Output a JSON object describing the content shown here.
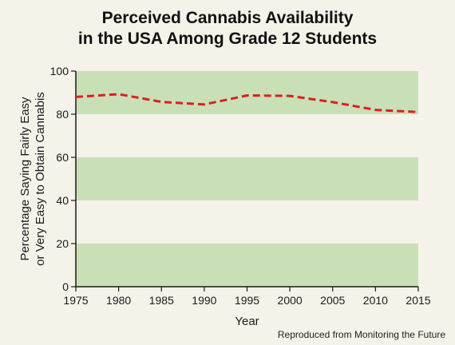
{
  "title_line1": "Perceived Cannabis Availability",
  "title_line2": "in the USA Among Grade 12 Students",
  "footer": "Reproduced from Monitoring the Future",
  "colors": {
    "background": "#f5f2e9",
    "band": "#c9e0b6",
    "line": "#dd1f1f",
    "axis": "#1a1a1a"
  },
  "chart_data": {
    "type": "line",
    "title": "Perceived Cannabis Availability in the USA Among Grade 12 Students",
    "xlabel": "Year",
    "ylabel_line1": "Percentage Saying Fairly Easy",
    "ylabel_line2": "or Very Easy to Obtain Cannabis",
    "xlim": [
      1975,
      2015
    ],
    "ylim": [
      0,
      100
    ],
    "xticks": [
      "1975",
      "1980",
      "1985",
      "1990",
      "1995",
      "2000",
      "2005",
      "2010",
      "2015"
    ],
    "yticks": [
      "0",
      "20",
      "40",
      "60",
      "80",
      "100"
    ],
    "grid": "alternating horizontal bands",
    "line_style": "dashed",
    "series": [
      {
        "x": [
          1975,
          1980,
          1985,
          1990,
          1995,
          2000,
          2005,
          2010,
          2015
        ],
        "values": [
          88,
          89.3,
          85.7,
          84.5,
          88.7,
          88.5,
          85.6,
          82,
          81
        ]
      }
    ]
  }
}
